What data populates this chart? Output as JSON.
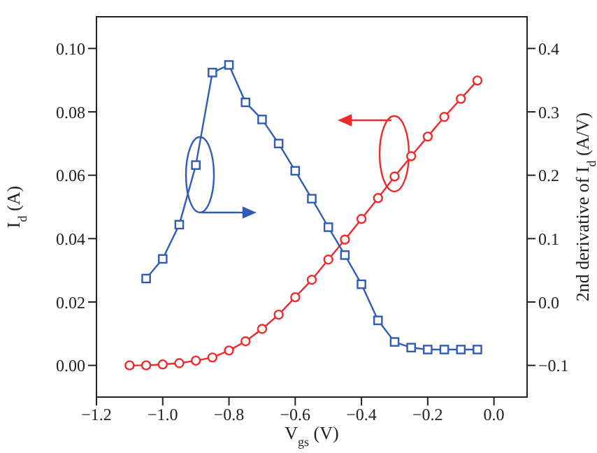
{
  "chart_data": {
    "type": "line",
    "xlabel": "V$_{gs}$ (V)",
    "ylabel": "I$_{d}$ (A)",
    "y2label": "2nd derivative of I$_{d}$ (A/V)",
    "x": [
      -1.1,
      -1.05,
      -1.0,
      -0.95,
      -0.9,
      -0.85,
      -0.8,
      -0.75,
      -0.7,
      -0.65,
      -0.6,
      -0.55,
      -0.5,
      -0.45,
      -0.4,
      -0.35,
      -0.3,
      -0.25,
      -0.2,
      -0.15,
      -0.1,
      -0.05
    ],
    "series": [
      {
        "color": "#ee2a2a",
        "marker": "circle",
        "values": [
          0,
          0,
          0.0003,
          0.0007,
          0.0015,
          0.0025,
          0.0047,
          0.0076,
          0.0115,
          0.016,
          0.0215,
          0.027,
          0.0334,
          0.0397,
          0.0462,
          0.0528,
          0.0596,
          0.066,
          0.0722,
          0.0784,
          0.0841,
          0.0899
        ]
      },
      {
        "color": "#2e5cb8",
        "marker": "square",
        "axis": "y2",
        "values": [
          null,
          0.037,
          0.068,
          0.122,
          0.216,
          0.362,
          0.374,
          0.315,
          0.288,
          0.25,
          0.207,
          0.163,
          0.118,
          0.074,
          0.028,
          -0.029,
          -0.063,
          -0.072,
          -0.075,
          -0.075,
          -0.075,
          -0.075
        ]
      }
    ],
    "xlim": [
      -1.2,
      0.1
    ],
    "xticks": [
      {
        "value": -1.2,
        "label": "−1.2"
      },
      {
        "value": -1.0,
        "label": "−1.0"
      },
      {
        "value": -0.8,
        "label": "−0.8"
      },
      {
        "value": -0.6,
        "label": "−0.6"
      },
      {
        "value": -0.4,
        "label": "−0.4"
      },
      {
        "value": -0.2,
        "label": "−0.2"
      },
      {
        "value": 0,
        "label": "0.0"
      }
    ],
    "ylim": [
      -0.01,
      0.11
    ],
    "yticks": [
      {
        "value": 0,
        "label": "0.00"
      },
      {
        "value": 0.02,
        "label": "0.02"
      },
      {
        "value": 0.04,
        "label": "0.04"
      },
      {
        "value": 0.06,
        "label": "0.06"
      },
      {
        "value": 0.08,
        "label": "0.08"
      },
      {
        "value": 0.1,
        "label": "0.10"
      }
    ],
    "y2lim": [
      -0.15,
      0.45
    ],
    "y2ticks": [
      {
        "value": -0.1,
        "label": "−0.1"
      },
      {
        "value": 0,
        "label": "0.0"
      },
      {
        "value": 0.1,
        "label": "0.1"
      },
      {
        "value": 0.2,
        "label": "0.2"
      },
      {
        "value": 0.3,
        "label": "0.3"
      },
      {
        "value": 0.4,
        "label": "0.4"
      }
    ],
    "grid": false,
    "legend": false
  }
}
